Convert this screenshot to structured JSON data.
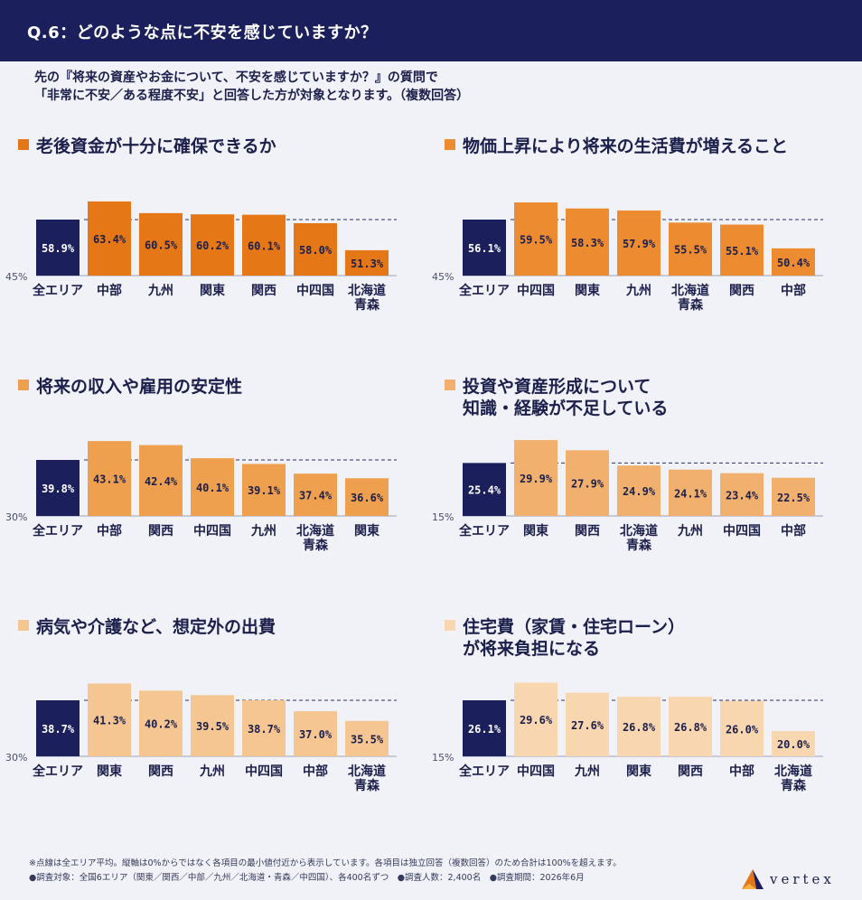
{
  "header": {
    "title": "Q.6：どのような点に不安を感じていますか？"
  },
  "intro": {
    "line1": "先の『将来の資産やお金について、不安を感じていますか？』の質問で",
    "line2": "「非常に不安／ある程度不安」と回答した方が対象となります。（複数回答）"
  },
  "colors": {
    "header_bg": "#1b1f5c",
    "all_area_bar": "#1b1f5c",
    "chart1": "#e57716",
    "chart2": "#ec8b2f",
    "chart3": "#efa04e",
    "chart4": "#f1b06e",
    "chart5": "#f5c592",
    "chart6": "#f8d6b0"
  },
  "chart_data": [
    {
      "type": "bar",
      "title_lines": [
        "老後資金が十分に確保できるか"
      ],
      "ymin_label": "45%",
      "ymin": 45,
      "reference_line": 58.9,
      "categories": [
        "全エリア",
        "中部",
        "九州",
        "関東",
        "関西",
        "中四国",
        "北海道\n青森"
      ],
      "values": [
        58.9,
        63.4,
        60.5,
        60.2,
        60.1,
        58.0,
        51.3
      ],
      "labels": [
        "58.9%",
        "63.4%",
        "60.5%",
        "60.2%",
        "60.1%",
        "58.0%",
        "51.3%"
      ],
      "color": "#e57716"
    },
    {
      "type": "bar",
      "title_lines": [
        "物価上昇により将来の生活費が増えること"
      ],
      "ymin_label": "45%",
      "ymin": 45,
      "reference_line": 56.1,
      "categories": [
        "全エリア",
        "中四国",
        "関東",
        "九州",
        "北海道\n青森",
        "関西",
        "中部"
      ],
      "values": [
        56.1,
        59.5,
        58.3,
        57.9,
        55.5,
        55.1,
        50.4
      ],
      "labels": [
        "56.1%",
        "59.5%",
        "58.3%",
        "57.9%",
        "55.5%",
        "55.1%",
        "50.4%"
      ],
      "color": "#ec8b2f"
    },
    {
      "type": "bar",
      "title_lines": [
        "将来の収入や雇用の安定性"
      ],
      "ymin_label": "30%",
      "ymin": 30,
      "reference_line": 39.8,
      "categories": [
        "全エリア",
        "中部",
        "関西",
        "中四国",
        "九州",
        "北海道\n青森",
        "関東"
      ],
      "values": [
        39.8,
        43.1,
        42.4,
        40.1,
        39.1,
        37.4,
        36.6
      ],
      "labels": [
        "39.8%",
        "43.1%",
        "42.4%",
        "40.1%",
        "39.1%",
        "37.4%",
        "36.6%"
      ],
      "color": "#efa04e"
    },
    {
      "type": "bar",
      "title_lines": [
        "投資や資産形成について",
        "知識・経験が不足している"
      ],
      "ymin_label": "15%",
      "ymin": 15,
      "reference_line": 25.4,
      "categories": [
        "全エリア",
        "関東",
        "関西",
        "北海道\n青森",
        "九州",
        "中四国",
        "中部"
      ],
      "values": [
        25.4,
        29.9,
        27.9,
        24.9,
        24.1,
        23.4,
        22.5
      ],
      "labels": [
        "25.4%",
        "29.9%",
        "27.9%",
        "24.9%",
        "24.1%",
        "23.4%",
        "22.5%"
      ],
      "color": "#f1b06e"
    },
    {
      "type": "bar",
      "title_lines": [
        "病気や介護など、想定外の出費"
      ],
      "ymin_label": "30%",
      "ymin": 30,
      "reference_line": 38.7,
      "categories": [
        "全エリア",
        "関東",
        "関西",
        "九州",
        "中四国",
        "中部",
        "北海道\n青森"
      ],
      "values": [
        38.7,
        41.3,
        40.2,
        39.5,
        38.7,
        37.0,
        35.5
      ],
      "labels": [
        "38.7%",
        "41.3%",
        "40.2%",
        "39.5%",
        "38.7%",
        "37.0%",
        "35.5%"
      ],
      "color": "#f5c592"
    },
    {
      "type": "bar",
      "title_lines": [
        "住宅費（家賃・住宅ローン）",
        "が将来負担になる"
      ],
      "ymin_label": "15%",
      "ymin": 15,
      "reference_line": 26.1,
      "categories": [
        "全エリア",
        "中四国",
        "九州",
        "関東",
        "関西",
        "中部",
        "北海道\n青森"
      ],
      "values": [
        26.1,
        29.6,
        27.6,
        26.8,
        26.8,
        26.0,
        20.0
      ],
      "labels": [
        "26.1%",
        "29.6%",
        "27.6%",
        "26.8%",
        "26.8%",
        "26.0%",
        "20.0%"
      ],
      "color": "#f8d6b0"
    }
  ],
  "footer": {
    "note": "※点線は全エリア平均。縦軸は0%からではなく各項目の最小値付近から表示しています。各項目は独立回答（複数回答）のため合計は100%を超えます。",
    "meta": "●調査対象：全国6エリア（関東／関西／中部／九州／北海道・青森／中四国）、各400名ずつ　●調査人数：2,400名　●調査期間：2026年6月"
  },
  "logo": {
    "text": "vertex",
    "icon": "vertex-logo-icon"
  }
}
